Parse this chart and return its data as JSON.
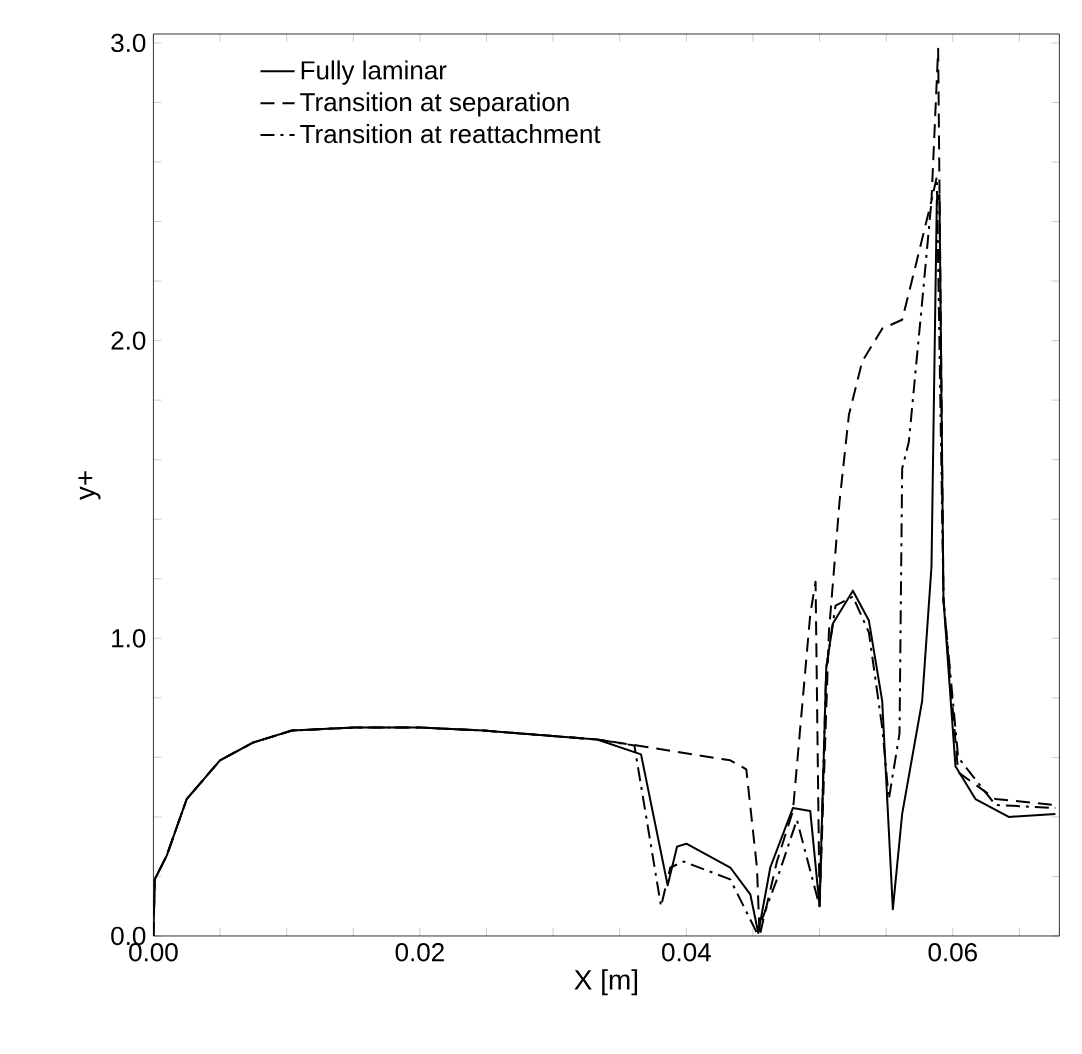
{
  "chart_data": {
    "type": "line",
    "xlabel": "X [m]",
    "ylabel": "y+",
    "xlim": [
      0,
      0.068
    ],
    "ylim": [
      0,
      3.03
    ],
    "xticks": [
      {
        "value": 0,
        "label": "0.00"
      },
      {
        "value": 0.005,
        "label": null
      },
      {
        "value": 0.01,
        "label": null
      },
      {
        "value": 0.015,
        "label": null
      },
      {
        "value": 0.02,
        "label": "0.02"
      },
      {
        "value": 0.025,
        "label": null
      },
      {
        "value": 0.03,
        "label": null
      },
      {
        "value": 0.035,
        "label": null
      },
      {
        "value": 0.04,
        "label": "0.04"
      },
      {
        "value": 0.045,
        "label": null
      },
      {
        "value": 0.05,
        "label": null
      },
      {
        "value": 0.055,
        "label": null
      },
      {
        "value": 0.06,
        "label": "0.06"
      },
      {
        "value": 0.065,
        "label": null
      }
    ],
    "yticks": [
      {
        "value": 0,
        "label": "0.0"
      },
      {
        "value": 0.2,
        "label": null
      },
      {
        "value": 0.4,
        "label": null
      },
      {
        "value": 0.6,
        "label": null
      },
      {
        "value": 0.8,
        "label": null
      },
      {
        "value": 1.0,
        "label": "1.0"
      },
      {
        "value": 1.2,
        "label": null
      },
      {
        "value": 1.4,
        "label": null
      },
      {
        "value": 1.6,
        "label": null
      },
      {
        "value": 1.8,
        "label": null
      },
      {
        "value": 2.0,
        "label": "2.0"
      },
      {
        "value": 2.2,
        "label": null
      },
      {
        "value": 2.4,
        "label": null
      },
      {
        "value": 2.6,
        "label": null
      },
      {
        "value": 2.8,
        "label": null
      },
      {
        "value": 3.0,
        "label": "3.0"
      }
    ],
    "grid": false,
    "legend": "top left",
    "marker": "none",
    "series": [
      {
        "name": "Fully laminar",
        "color": "#000000",
        "line_style": "solid",
        "x": [
          0,
          0.0001,
          0.001,
          0.0025,
          0.005,
          0.0075,
          0.0104,
          0.015,
          0.02,
          0.0248,
          0.0333,
          0.0366,
          0.0386,
          0.0393,
          0.04,
          0.0433,
          0.0448,
          0.0454,
          0.0463,
          0.048,
          0.0493,
          0.05,
          0.0505,
          0.051,
          0.0525,
          0.0537,
          0.0547,
          0.0555,
          0.0562,
          0.0577,
          0.0584,
          0.0588,
          0.059,
          0.0593,
          0.0602,
          0.0617,
          0.0642,
          0.0677
        ],
        "values": [
          0,
          0.19,
          0.27,
          0.46,
          0.59,
          0.65,
          0.69,
          0.7,
          0.7,
          0.69,
          0.66,
          0.61,
          0.17,
          0.3,
          0.31,
          0.23,
          0.14,
          0.01,
          0.23,
          0.43,
          0.42,
          0.1,
          0.9,
          1.05,
          1.16,
          1.06,
          0.79,
          0.09,
          0.41,
          0.79,
          1.24,
          2.47,
          2.49,
          1.13,
          0.57,
          0.46,
          0.4,
          0.41
        ]
      },
      {
        "name": "Transition at separation",
        "color": "#000000",
        "line_style": "dashed",
        "x": [
          0,
          0.0001,
          0.001,
          0.0025,
          0.005,
          0.0075,
          0.0104,
          0.015,
          0.02,
          0.0248,
          0.0333,
          0.0363,
          0.0433,
          0.0445,
          0.0453,
          0.0455,
          0.0468,
          0.048,
          0.0493,
          0.0497,
          0.05,
          0.0507,
          0.0515,
          0.0522,
          0.0532,
          0.0547,
          0.0562,
          0.0572,
          0.0584,
          0.0589,
          0.0593,
          0.0604,
          0.0632,
          0.0677
        ],
        "values": [
          0,
          0.19,
          0.27,
          0.46,
          0.59,
          0.65,
          0.69,
          0.7,
          0.7,
          0.69,
          0.66,
          0.64,
          0.59,
          0.56,
          0.23,
          0.0,
          0.25,
          0.42,
          1.08,
          1.19,
          0.1,
          1.02,
          1.46,
          1.75,
          1.93,
          2.04,
          2.07,
          2.25,
          2.47,
          2.98,
          1.13,
          0.55,
          0.46,
          0.44
        ]
      },
      {
        "name": "Transition at reattachment",
        "color": "#000000",
        "line_style": "dashdotted",
        "x": [
          0,
          0.0001,
          0.001,
          0.0025,
          0.005,
          0.0075,
          0.0104,
          0.015,
          0.02,
          0.0248,
          0.0333,
          0.0361,
          0.0381,
          0.0388,
          0.0398,
          0.0433,
          0.0453,
          0.0468,
          0.0483,
          0.05,
          0.0505,
          0.0512,
          0.0525,
          0.0537,
          0.0547,
          0.0552,
          0.056,
          0.0562,
          0.0567,
          0.0577,
          0.0584,
          0.0588,
          0.0593,
          0.0604,
          0.0632,
          0.0677
        ],
        "values": [
          0,
          0.19,
          0.27,
          0.46,
          0.59,
          0.65,
          0.69,
          0.7,
          0.7,
          0.69,
          0.66,
          0.64,
          0.1,
          0.23,
          0.25,
          0.19,
          0.01,
          0.19,
          0.39,
          0.1,
          0.9,
          1.11,
          1.14,
          1.02,
          0.7,
          0.46,
          0.68,
          1.57,
          1.66,
          2.13,
          2.47,
          2.55,
          1.13,
          0.6,
          0.44,
          0.43
        ]
      }
    ]
  }
}
